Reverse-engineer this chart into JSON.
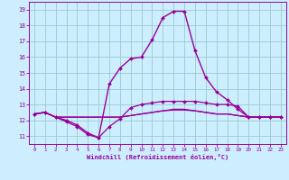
{
  "xlabel": "Windchill (Refroidissement éolien,°C)",
  "bg_color": "#cceeff",
  "line_color": "#990099",
  "grid_color": "#99cccc",
  "xlim": [
    -0.5,
    23.5
  ],
  "ylim": [
    10.5,
    19.5
  ],
  "xticks": [
    0,
    1,
    2,
    3,
    4,
    5,
    6,
    7,
    8,
    9,
    10,
    11,
    12,
    13,
    14,
    15,
    16,
    17,
    18,
    19,
    20,
    21,
    22,
    23
  ],
  "yticks": [
    11,
    12,
    13,
    14,
    15,
    16,
    17,
    18,
    19
  ],
  "series": [
    {
      "y": [
        12.4,
        12.5,
        12.2,
        11.9,
        11.6,
        11.1,
        10.9,
        11.6,
        12.1,
        12.8,
        13.0,
        13.1,
        13.2,
        13.2,
        13.2,
        13.2,
        13.1,
        13.0,
        13.0,
        12.9,
        12.2,
        12.2,
        12.2,
        12.2
      ],
      "marker": true,
      "lw": 0.9
    },
    {
      "y": [
        12.4,
        12.5,
        12.2,
        12.2,
        12.2,
        12.2,
        12.2,
        12.2,
        12.2,
        12.3,
        12.4,
        12.5,
        12.6,
        12.7,
        12.7,
        12.6,
        12.5,
        12.4,
        12.4,
        12.3,
        12.2,
        12.2,
        12.2,
        12.2
      ],
      "marker": false,
      "lw": 0.9
    },
    {
      "y": [
        12.4,
        12.5,
        12.2,
        12.2,
        12.2,
        12.2,
        12.2,
        12.2,
        12.2,
        12.3,
        12.4,
        12.5,
        12.6,
        12.65,
        12.65,
        12.6,
        12.5,
        12.4,
        12.4,
        12.3,
        12.2,
        12.2,
        12.2,
        12.2
      ],
      "marker": false,
      "lw": 0.9
    },
    {
      "y": [
        12.4,
        12.5,
        12.2,
        12.0,
        11.7,
        11.2,
        10.9,
        14.3,
        15.3,
        15.9,
        16.0,
        17.1,
        18.5,
        18.9,
        18.9,
        16.4,
        14.7,
        13.8,
        13.3,
        12.7,
        12.2,
        12.2,
        12.2,
        12.2
      ],
      "marker": true,
      "lw": 1.0
    }
  ],
  "marker_style": "D",
  "marker_size": 2.0
}
